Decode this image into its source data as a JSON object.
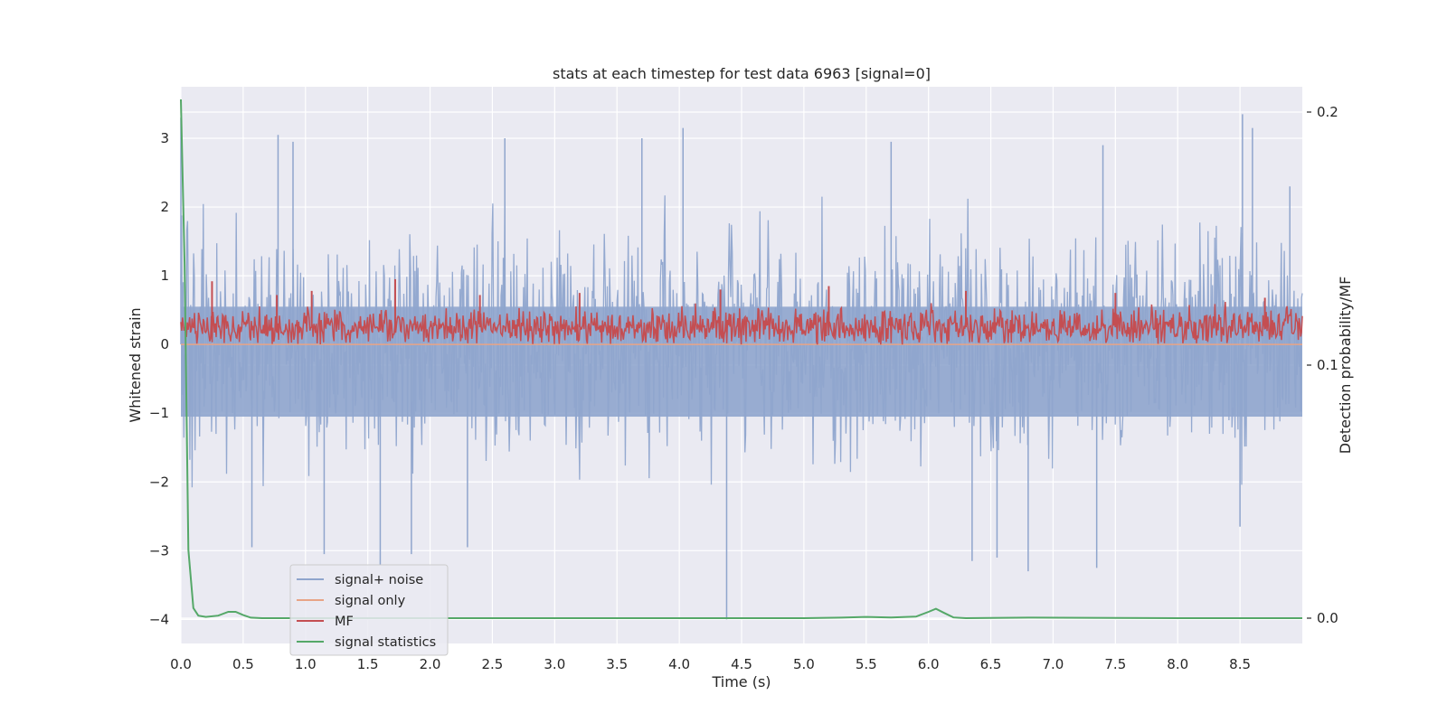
{
  "chart_data": {
    "type": "line",
    "title": "stats at each timestep for test data 6963 [signal=0]",
    "xlabel": "Time (s)",
    "ylabel": "Whitened strain",
    "ylabel_right": "Detection probability/MF",
    "xlim": [
      0.0,
      9.0
    ],
    "ylim": [
      -4.35,
      3.75
    ],
    "ylim_right": [
      -0.01,
      0.21
    ],
    "xticks": [
      "0.0",
      "0.5",
      "1.0",
      "1.5",
      "2.0",
      "2.5",
      "3.0",
      "3.5",
      "4.0",
      "4.5",
      "5.0",
      "5.5",
      "6.0",
      "6.5",
      "7.0",
      "7.5",
      "8.0",
      "8.5"
    ],
    "yticks": [
      "3",
      "2",
      "1",
      "0",
      "−1",
      "−2",
      "−3",
      "−4"
    ],
    "yticks_right": [
      "0.2",
      "0.1",
      "0.0"
    ],
    "grid": true,
    "legend_position": "lower-left",
    "series": [
      {
        "name": "signal+ noise",
        "axis": "left",
        "color": "#8fa5cd",
        "description_style": "dense noise",
        "envelope": {
          "typical_max": 1.9,
          "typical_min": -1.9,
          "spike_max": 3.4,
          "spike_min": -4.0
        },
        "peaks": [
          {
            "x": 0.0,
            "y": 3.3
          },
          {
            "x": 0.78,
            "y": 3.05
          },
          {
            "x": 0.9,
            "y": 2.95
          },
          {
            "x": 2.6,
            "y": 3.0
          },
          {
            "x": 3.7,
            "y": 3.0
          },
          {
            "x": 4.03,
            "y": 3.15
          },
          {
            "x": 5.7,
            "y": 2.95
          },
          {
            "x": 7.4,
            "y": 2.9
          },
          {
            "x": 8.52,
            "y": 3.35
          },
          {
            "x": 8.6,
            "y": 3.15
          },
          {
            "x": 8.9,
            "y": 2.3
          }
        ],
        "troughs": [
          {
            "x": 0.57,
            "y": -2.95
          },
          {
            "x": 1.15,
            "y": -3.05
          },
          {
            "x": 1.6,
            "y": -3.2
          },
          {
            "x": 1.85,
            "y": -3.05
          },
          {
            "x": 2.3,
            "y": -2.95
          },
          {
            "x": 4.38,
            "y": -4.0
          },
          {
            "x": 6.35,
            "y": -3.15
          },
          {
            "x": 6.55,
            "y": -3.1
          },
          {
            "x": 6.8,
            "y": -3.3
          },
          {
            "x": 7.35,
            "y": -3.25
          },
          {
            "x": 8.5,
            "y": -2.65
          }
        ]
      },
      {
        "name": "signal only",
        "axis": "left",
        "color": "#e8a486",
        "x": [
          0.0,
          9.0
        ],
        "y": [
          0.0,
          0.0
        ]
      },
      {
        "name": "MF",
        "axis": "left",
        "color": "#c44e52",
        "description_style": "dense noise",
        "envelope": {
          "typical_max": 0.6,
          "typical_min": 0.0,
          "spike_max": 1.0
        },
        "peaks": [
          {
            "x": 0.25,
            "y": 0.92
          },
          {
            "x": 0.77,
            "y": 0.72
          },
          {
            "x": 1.05,
            "y": 0.78
          },
          {
            "x": 1.72,
            "y": 0.95
          },
          {
            "x": 2.4,
            "y": 0.72
          },
          {
            "x": 3.2,
            "y": 0.75
          },
          {
            "x": 4.33,
            "y": 0.8
          },
          {
            "x": 5.2,
            "y": 0.85
          },
          {
            "x": 6.3,
            "y": 0.78
          },
          {
            "x": 7.5,
            "y": 0.75
          },
          {
            "x": 8.7,
            "y": 0.68
          }
        ]
      },
      {
        "name": "signal statistics",
        "axis": "right",
        "color": "#55a868",
        "x": [
          0.0,
          0.03,
          0.06,
          0.1,
          0.14,
          0.2,
          0.3,
          0.38,
          0.44,
          0.5,
          0.56,
          0.65,
          1.0,
          2.0,
          3.0,
          4.0,
          5.0,
          5.3,
          5.5,
          5.7,
          5.9,
          6.0,
          6.06,
          6.12,
          6.2,
          6.3,
          6.8,
          7.5,
          8.0,
          9.0
        ],
        "y": [
          0.205,
          0.14,
          0.027,
          0.004,
          0.001,
          0.0005,
          0.001,
          0.0025,
          0.0025,
          0.0012,
          0.0002,
          0.0,
          0.0,
          0.0,
          0.0,
          0.0,
          0.0,
          0.0002,
          0.0005,
          0.0003,
          0.0006,
          0.0025,
          0.0037,
          0.0022,
          0.0003,
          0.0,
          0.0002,
          0.0001,
          0.0,
          0.0
        ]
      }
    ]
  }
}
